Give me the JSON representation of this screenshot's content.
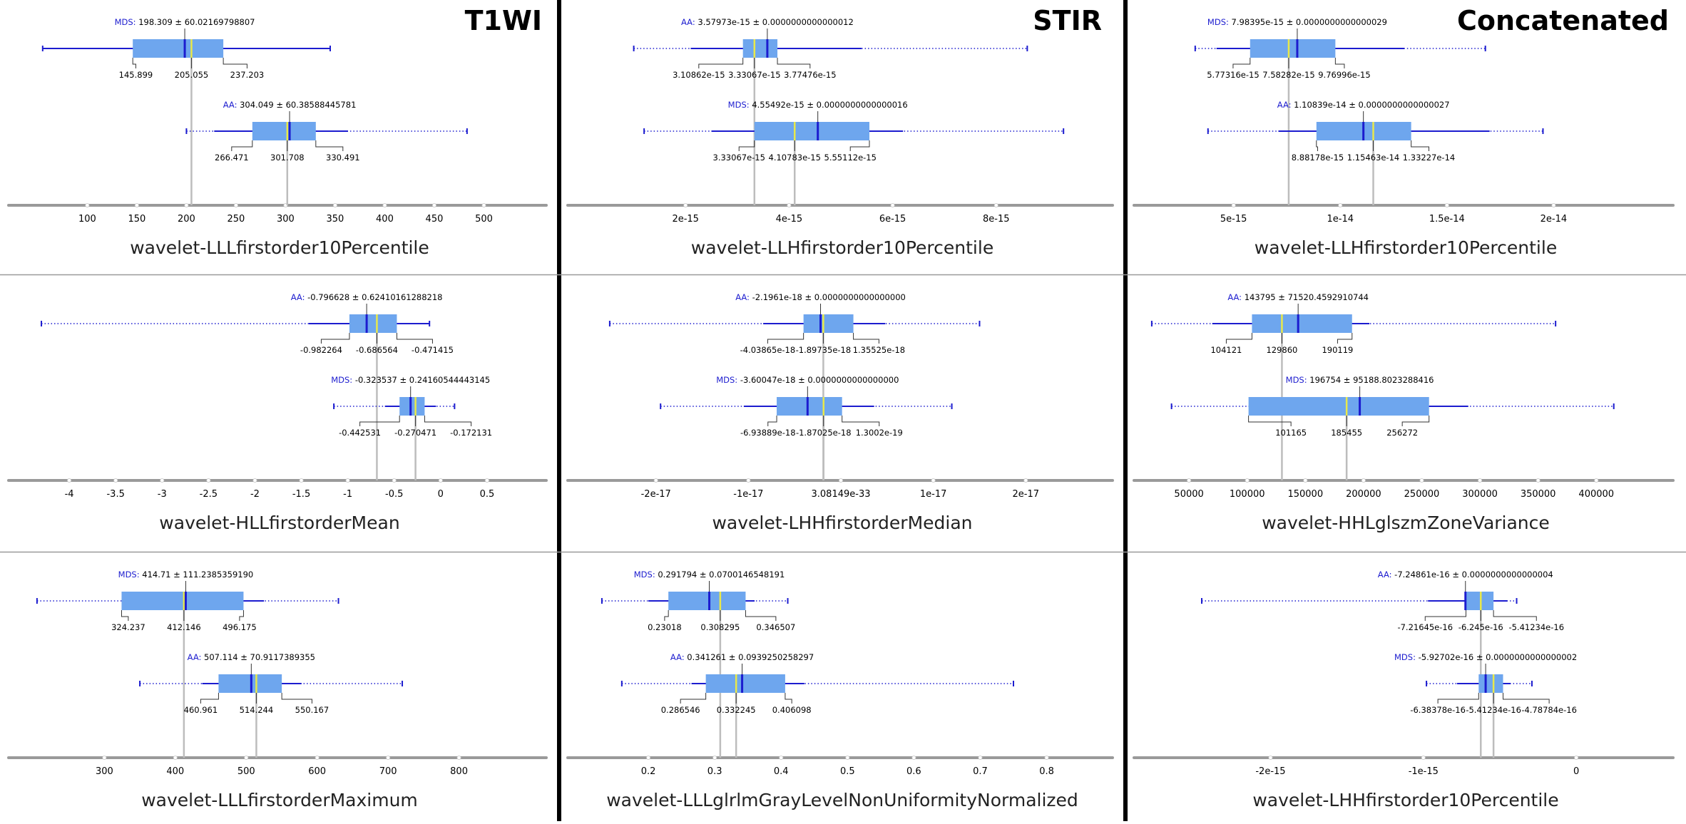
{
  "figure": {
    "column_titles": [
      "T1WI",
      "STIR",
      "Concatenated"
    ],
    "colors": {
      "box_fill": "#6ea6ee",
      "whisker": "#1c1ccf",
      "mean_tick": "#1c1ccf",
      "median_line": "#e8e84a",
      "ref_line": "#bdbdbd",
      "axis": "#9a9a9a",
      "group_label": "#1c1ccf",
      "divider_thick": "#000000",
      "divider_thin": "#9a9a9a"
    }
  },
  "chart_data": [
    {
      "type": "boxplot",
      "panel": [
        0,
        0
      ],
      "xlabel": "wavelet-LLLfirstorder10Percentile",
      "xlim": [
        35,
        550
      ],
      "ticks": [
        100,
        150,
        200,
        250,
        300,
        350,
        400,
        450,
        500
      ],
      "tick_labels": [
        "100",
        "150",
        "200",
        "250",
        "300",
        "350",
        "400",
        "450",
        "500"
      ],
      "groups": [
        {
          "name": "MDS",
          "summary": "198.309 ± 60.02169798807",
          "min": 55,
          "q1": 145.899,
          "median": 205.055,
          "q3": 237.203,
          "mean": 198.309,
          "max": 345,
          "whisker_low": 55,
          "whisker_high": 345,
          "value_labels": [
            "145.899",
            "205.055",
            "237.203"
          ]
        },
        {
          "name": "AA",
          "summary": "304.049 ± 60.38588445781",
          "min": 200,
          "q1": 266.471,
          "median": 301.708,
          "q3": 330.491,
          "mean": 304.049,
          "max": 483,
          "whisker_low": 228,
          "whisker_high": 363,
          "value_labels": [
            "266.471",
            "301.708",
            "330.491"
          ]
        }
      ]
    },
    {
      "type": "boxplot",
      "panel": [
        0,
        1
      ],
      "xlabel": "wavelet-LLHfirstorder10Percentile",
      "xlim": [
        0.0,
        1e-14
      ],
      "ticks": [
        2e-15,
        4e-15,
        6e-15,
        8e-15
      ],
      "tick_labels": [
        "2e-15",
        "4e-15",
        "6e-15",
        "8e-15"
      ],
      "groups": [
        {
          "name": "AA",
          "summary": "3.57973e-15 ± 0.0000000000000012",
          "min": 1e-15,
          "q1": 3.10862e-15,
          "median": 3.33067e-15,
          "q3": 3.77476e-15,
          "mean": 3.57973e-15,
          "max": 8.6e-15,
          "whisker_low": 2.1e-15,
          "whisker_high": 5.4e-15,
          "value_labels": [
            "3.10862e-15",
            "3.33067e-15",
            "3.77476e-15"
          ]
        },
        {
          "name": "MDS",
          "summary": "4.55492e-15 ± 0.0000000000000016",
          "min": 1.2e-15,
          "q1": 3.33067e-15,
          "median": 4.10783e-15,
          "q3": 5.55112e-15,
          "mean": 4.55492e-15,
          "max": 9.3e-15,
          "whisker_low": 2.5e-15,
          "whisker_high": 6.2e-15,
          "value_labels": [
            "3.33067e-15",
            "4.10783e-15",
            "5.55112e-15"
          ]
        }
      ]
    },
    {
      "type": "boxplot",
      "panel": [
        0,
        2
      ],
      "xlabel": "wavelet-LLHfirstorder10Percentile",
      "xlim": [
        1e-15,
        2.5e-14
      ],
      "ticks": [
        5e-15,
        1e-14,
        1.5e-14,
        2e-14
      ],
      "tick_labels": [
        "5e-15",
        "1e-14",
        "1.5e-14",
        "2e-14"
      ],
      "groups": [
        {
          "name": "MDS",
          "summary": "7.98395e-15 ± 0.0000000000000029",
          "min": 3.2e-15,
          "q1": 5.77316e-15,
          "median": 7.58282e-15,
          "q3": 9.76996e-15,
          "mean": 7.98395e-15,
          "max": 1.68e-14,
          "whisker_low": 4.2e-15,
          "whisker_high": 1.3e-14,
          "value_labels": [
            "5.77316e-15",
            "7.58282e-15",
            "9.76996e-15"
          ]
        },
        {
          "name": "AA",
          "summary": "1.10839e-14 ± 0.0000000000000027",
          "min": 3.8e-15,
          "q1": 8.88178e-15,
          "median": 1.15463e-14,
          "q3": 1.33227e-14,
          "mean": 1.10839e-14,
          "max": 1.95e-14,
          "whisker_low": 7.1e-15,
          "whisker_high": 1.7e-14,
          "value_labels": [
            "8.88178e-15",
            "1.15463e-14",
            "1.33227e-14"
          ]
        }
      ]
    },
    {
      "type": "boxplot",
      "panel": [
        1,
        0
      ],
      "xlabel": "wavelet-HLLfirstorderMean",
      "xlim": [
        -4.5,
        1.0
      ],
      "ticks": [
        -4,
        -3.5,
        -3,
        -2.5,
        -2,
        -1.5,
        -1,
        -0.5,
        0,
        0.5
      ],
      "tick_labels": [
        "-4",
        "-3.5",
        "-3",
        "-2.5",
        "-2",
        "-1.5",
        "-1",
        "-0.5",
        "0",
        "0.5"
      ],
      "groups": [
        {
          "name": "AA",
          "summary": "-0.796628 ± 0.62410161288218",
          "min": -4.3,
          "q1": -0.982264,
          "median": -0.686564,
          "q3": -0.471415,
          "mean": -0.796628,
          "max": -0.12,
          "whisker_low": -1.42,
          "whisker_high": -0.12,
          "value_labels": [
            "-0.982264",
            "-0.686564",
            "-0.471415"
          ]
        },
        {
          "name": "MDS",
          "summary": "-0.323537 ± 0.24160544443145",
          "min": -1.15,
          "q1": -0.442531,
          "median": -0.270471,
          "q3": -0.172131,
          "mean": -0.323537,
          "max": 0.15,
          "whisker_low": -0.6,
          "whisker_high": -0.05,
          "value_labels": [
            "-0.442531",
            "-0.270471",
            "-0.172131"
          ]
        }
      ]
    },
    {
      "type": "boxplot",
      "panel": [
        1,
        1
      ],
      "xlabel": "wavelet-LHHfirstorderMedian",
      "xlim": [
        -2.8e-17,
        2.8e-17
      ],
      "ticks": [
        -2e-17,
        -1e-17,
        0,
        1e-17,
        2e-17
      ],
      "tick_labels": [
        "-2e-17",
        "-1e-17",
        "3.08149e-33",
        "1e-17",
        "2e-17"
      ],
      "groups": [
        {
          "name": "AA",
          "summary": "-2.1961e-18 ± 0.0000000000000000",
          "min": -2.5e-17,
          "q1": -4.03865e-18,
          "median": -1.89735e-18,
          "q3": 1.35525e-18,
          "mean": -2.1961e-18,
          "max": 1.5e-17,
          "whisker_low": -8.4e-18,
          "whisker_high": 4.8e-18,
          "value_labels": [
            "-4.03865e-18",
            "-1.89735e-18",
            "1.35525e-18"
          ]
        },
        {
          "name": "MDS",
          "summary": "-3.60047e-18 ± 0.0000000000000000",
          "min": -1.95e-17,
          "q1": -6.93889e-18,
          "median": -1.87025e-18,
          "q3": 1.3002e-19,
          "mean": -3.60047e-18,
          "max": 1.2e-17,
          "whisker_low": -1.05e-17,
          "whisker_high": 3.6e-18,
          "value_labels": [
            "-6.93889e-18",
            "-1.87025e-18",
            "1.3002e-19"
          ]
        }
      ]
    },
    {
      "type": "boxplot",
      "panel": [
        1,
        2
      ],
      "xlabel": "wavelet-HHLglszmZoneVariance",
      "xlim": [
        15000,
        455000
      ],
      "ticks": [
        50000,
        100000,
        150000,
        200000,
        250000,
        300000,
        350000,
        400000
      ],
      "tick_labels": [
        "50000",
        "100000",
        "150000",
        "200000",
        "250000",
        "300000",
        "350000",
        "400000"
      ],
      "groups": [
        {
          "name": "AA",
          "summary": "143795 ± 71520.4592910744",
          "min": 18000,
          "q1": 104121,
          "median": 129860,
          "q3": 190119,
          "mean": 143795,
          "max": 365000,
          "whisker_low": 70000,
          "whisker_high": 205000,
          "value_labels": [
            "104121",
            "129860",
            "190119"
          ]
        },
        {
          "name": "MDS",
          "summary": "196754 ± 95188.8023288416",
          "min": 35000,
          "q1": 101165,
          "median": 185455,
          "q3": 256272,
          "mean": 196754,
          "max": 415000,
          "whisker_low": 101165,
          "whisker_high": 290000,
          "value_labels": [
            "101165",
            "185455",
            "256272"
          ]
        }
      ]
    },
    {
      "type": "boxplot",
      "panel": [
        2,
        0
      ],
      "xlabel": "wavelet-LLLfirstorderMaximum",
      "xlim": [
        185,
        905
      ],
      "ticks": [
        300,
        400,
        500,
        600,
        700,
        800
      ],
      "tick_labels": [
        "300",
        "400",
        "500",
        "600",
        "700",
        "800"
      ],
      "groups": [
        {
          "name": "MDS",
          "summary": "414.71 ± 111.2385359190",
          "min": 205,
          "q1": 324.237,
          "median": 412.146,
          "q3": 496.175,
          "mean": 414.71,
          "max": 630,
          "whisker_low": 324.237,
          "whisker_high": 525,
          "value_labels": [
            "324.237",
            "412.146",
            "496.175"
          ]
        },
        {
          "name": "AA",
          "summary": "507.114 ± 70.9117389355",
          "min": 350,
          "q1": 460.961,
          "median": 514.244,
          "q3": 550.167,
          "mean": 507.114,
          "max": 720,
          "whisker_low": 438,
          "whisker_high": 578,
          "value_labels": [
            "460.961",
            "514.244",
            "550.167"
          ]
        }
      ]
    },
    {
      "type": "boxplot",
      "panel": [
        2,
        1
      ],
      "xlabel": "wavelet-LLLglrlmGrayLevelNonUniformityNormalized",
      "xlim": [
        0.1,
        0.88
      ],
      "ticks": [
        0.2,
        0.3,
        0.4,
        0.5,
        0.6,
        0.7,
        0.8
      ],
      "tick_labels": [
        "0.2",
        "0.3",
        "0.4",
        "0.5",
        "0.6",
        "0.7",
        "0.8"
      ],
      "groups": [
        {
          "name": "MDS",
          "summary": "0.291794 ± 0.0700146548191",
          "min": 0.13,
          "q1": 0.23018,
          "median": 0.308295,
          "q3": 0.346507,
          "mean": 0.291794,
          "max": 0.41,
          "whisker_low": 0.2,
          "whisker_high": 0.36,
          "value_labels": [
            "0.23018",
            "0.308295",
            "0.346507"
          ]
        },
        {
          "name": "AA",
          "summary": "0.341261 ± 0.0939250258297",
          "min": 0.16,
          "q1": 0.286546,
          "median": 0.332245,
          "q3": 0.406098,
          "mean": 0.341261,
          "max": 0.75,
          "whisker_low": 0.265,
          "whisker_high": 0.435,
          "value_labels": [
            "0.286546",
            "0.332245",
            "0.406098"
          ]
        }
      ]
    },
    {
      "type": "boxplot",
      "panel": [
        2,
        2
      ],
      "xlabel": "wavelet-LHHfirstorder10Percentile",
      "xlim": [
        -2.8e-15,
        5.5e-16
      ],
      "ticks": [
        -2e-15,
        -1e-15,
        0
      ],
      "tick_labels": [
        "-2e-15",
        "-1e-15",
        "0"
      ],
      "groups": [
        {
          "name": "AA",
          "summary": "-7.24861e-16 ± 0.0000000000000004",
          "min": -2.45e-15,
          "q1": -7.21645e-16,
          "median": -6.245e-16,
          "q3": -5.41234e-16,
          "mean": -7.24861e-16,
          "max": -3.9e-16,
          "whisker_low": -9.7e-16,
          "whisker_high": -4.5e-16,
          "value_labels": [
            "-7.21645e-16",
            "-6.245e-16",
            "-5.41234e-16"
          ]
        },
        {
          "name": "MDS",
          "summary": "-5.92702e-16 ± 0.0000000000000002",
          "min": -9.8e-16,
          "q1": -6.38378e-16,
          "median": -5.41234e-16,
          "q3": -4.78784e-16,
          "mean": -5.92702e-16,
          "max": -2.9e-16,
          "whisker_low": -7.8e-16,
          "whisker_high": -4.3e-16,
          "value_labels": [
            "-6.38378e-16",
            "-5.41234e-16",
            "-4.78784e-16"
          ]
        }
      ]
    }
  ]
}
